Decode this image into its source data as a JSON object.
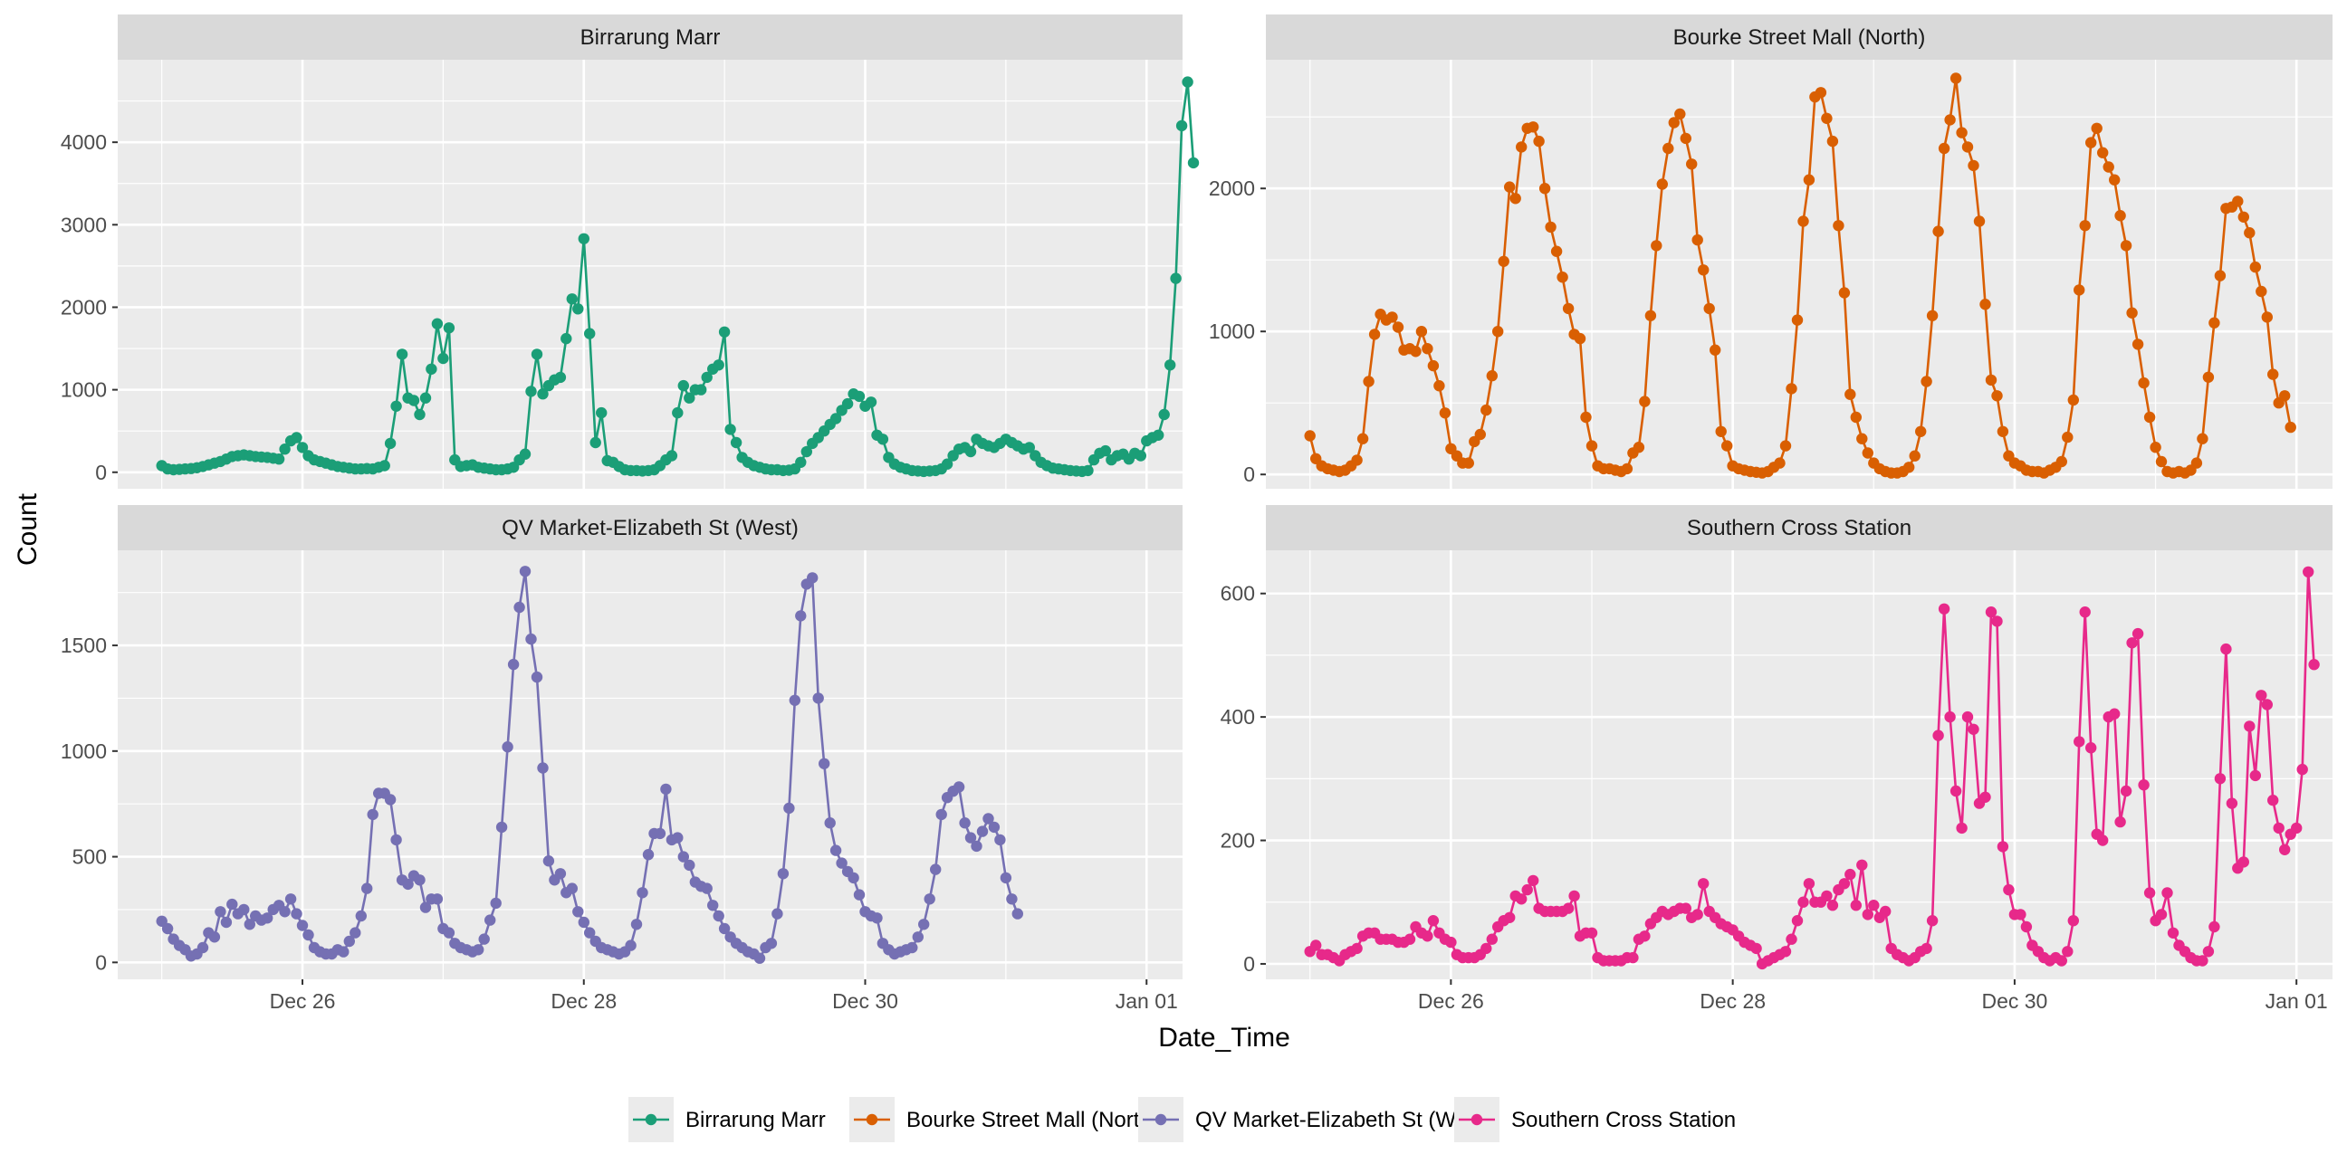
{
  "chart_data": {
    "type": "line",
    "xlabel": "Date_Time",
    "ylabel": "Count",
    "x_start": "2023-12-25T00:00",
    "x_end": "2023-12-31T23:00",
    "x_tick_labels": [
      "Dec 26",
      "Dec 28",
      "Dec 30",
      "Jan 01"
    ],
    "x_tick_dates": [
      "2023-12-26",
      "2023-12-28",
      "2023-12-30",
      "2024-01-01"
    ],
    "legend_position": "bottom",
    "grid": true,
    "colors": {
      "Birrarung Marr": "#1b9e77",
      "Bourke Street Mall (North)": "#d95f02",
      "QV Market-Elizabeth St (West)": "#7570b3",
      "Southern Cross Station": "#e7298a"
    },
    "legend": [
      "Birrarung Marr",
      "Bourke Street Mall (North)",
      "QV Market-Elizabeth St (West)",
      "Southern Cross Station"
    ],
    "panels": [
      {
        "name": "Birrarung Marr",
        "ylim": [
          -200,
          5000
        ],
        "yticks": [
          0,
          1000,
          2000,
          3000,
          4000
        ],
        "series": [
          {
            "x": "2023-12-25T00:00",
            "values": [
              80,
              40,
              30,
              35,
              40,
              45,
              55,
              70,
              90,
              110,
              130,
              160,
              190,
              200,
              210,
              200,
              190,
              185,
              180,
              170,
              160,
              280,
              380,
              420,
              300,
              200,
              150,
              130,
              110,
              90,
              70,
              60,
              50,
              40,
              40,
              45,
              40,
              60,
              80,
              350,
              800,
              1430,
              900,
              870,
              700,
              900,
              1250,
              1800,
              1380,
              1750,
              150,
              70,
              80,
              90,
              60,
              50,
              40,
              30,
              30,
              40,
              60,
              150,
              220,
              980,
              1430,
              950,
              1050,
              1120,
              1150,
              1620,
              2100,
              1980,
              2830,
              1680,
              360,
              720,
              140,
              120,
              70,
              30,
              20,
              20,
              15,
              20,
              30,
              80,
              150,
              200,
              720,
              1050,
              900,
              1000,
              1000,
              1150,
              1250,
              1300,
              1700,
              520,
              360,
              180,
              120,
              80,
              60,
              40,
              30,
              30,
              20,
              25,
              40,
              120,
              250,
              350,
              420,
              500,
              580,
              650,
              750,
              830,
              950,
              920,
              800,
              850,
              450,
              400,
              180,
              100,
              60,
              40,
              20,
              15,
              10,
              15,
              20,
              40,
              100,
              200,
              280,
              300,
              250,
              400,
              350,
              320,
              300,
              350,
              400,
              360,
              320,
              280,
              300,
              200,
              120,
              80,
              50,
              40,
              30,
              20,
              15,
              10,
              20,
              150,
              230,
              260,
              150,
              200,
              220,
              160,
              230,
              200,
              380,
              420,
              450,
              700,
              1300,
              2350,
              4200,
              4730,
              3750
            ]
          }
        ]
      },
      {
        "name": "Bourke Street Mall (North)",
        "ylim": [
          -100,
          2900
        ],
        "yticks": [
          0,
          1000,
          2000
        ],
        "series": [
          {
            "x": "2023-12-25T00:00",
            "values": [
              270,
              110,
              60,
              40,
              30,
              20,
              30,
              60,
              100,
              250,
              650,
              980,
              1120,
              1080,
              1100,
              1030,
              870,
              880,
              860,
              1000,
              880,
              760,
              620,
              430,
              180,
              130,
              80,
              80,
              230,
              280,
              450,
              690,
              1000,
              1490,
              2010,
              1930,
              2290,
              2420,
              2430,
              2330,
              2000,
              1730,
              1560,
              1380,
              1160,
              980,
              950,
              400,
              200,
              60,
              40,
              40,
              30,
              20,
              40,
              150,
              190,
              510,
              1110,
              1600,
              2030,
              2280,
              2460,
              2520,
              2350,
              2170,
              1640,
              1430,
              1160,
              870,
              300,
              200,
              60,
              40,
              30,
              20,
              15,
              10,
              20,
              50,
              80,
              200,
              600,
              1080,
              1770,
              2060,
              2640,
              2670,
              2490,
              2330,
              1740,
              1270,
              560,
              400,
              250,
              150,
              80,
              40,
              20,
              10,
              10,
              20,
              50,
              130,
              300,
              650,
              1110,
              1700,
              2280,
              2480,
              2770,
              2390,
              2290,
              2160,
              1770,
              1190,
              660,
              550,
              300,
              130,
              80,
              60,
              30,
              20,
              20,
              10,
              30,
              50,
              90,
              260,
              520,
              1290,
              1740,
              2320,
              2420,
              2250,
              2150,
              2060,
              1810,
              1600,
              1130,
              910,
              640,
              400,
              190,
              90,
              20,
              10,
              20,
              10,
              30,
              80,
              250,
              680,
              1060,
              1390,
              1860,
              1870,
              1910,
              1800,
              1690,
              1450,
              1280,
              1100,
              700,
              500,
              550,
              330
            ]
          }
        ]
      },
      {
        "name": "QV Market-Elizabeth St (West)",
        "ylim": [
          -80,
          1950
        ],
        "yticks": [
          0,
          500,
          1000,
          1500
        ],
        "series": [
          {
            "x": "2023-12-25T00:00",
            "values": [
              195,
              160,
              110,
              80,
              60,
              30,
              40,
              70,
              140,
              120,
              240,
              190,
              275,
              230,
              250,
              180,
              220,
              200,
              210,
              250,
              270,
              240,
              300,
              230,
              175,
              130,
              70,
              50,
              40,
              40,
              60,
              50,
              100,
              140,
              220,
              350,
              700,
              800,
              800,
              770,
              580,
              390,
              370,
              410,
              390,
              260,
              300,
              300,
              160,
              140,
              90,
              70,
              60,
              50,
              60,
              110,
              200,
              280,
              640,
              1020,
              1410,
              1680,
              1850,
              1530,
              1350,
              920,
              480,
              390,
              420,
              330,
              350,
              240,
              190,
              140,
              100,
              70,
              60,
              50,
              40,
              50,
              80,
              180,
              330,
              510,
              610,
              610,
              820,
              580,
              590,
              500,
              460,
              380,
              360,
              350,
              270,
              220,
              160,
              120,
              90,
              70,
              50,
              40,
              20,
              70,
              90,
              230,
              420,
              730,
              1240,
              1640,
              1790,
              1820,
              1250,
              940,
              660,
              530,
              470,
              430,
              400,
              320,
              240,
              220,
              210,
              90,
              60,
              40,
              50,
              60,
              70,
              120,
              180,
              300,
              440,
              700,
              780,
              810,
              830,
              660,
              590,
              550,
              620,
              680,
              640,
              580,
              400,
              300,
              230
            ]
          }
        ]
      },
      {
        "name": "Southern Cross Station",
        "ylim": [
          -25,
          670
        ],
        "yticks": [
          0,
          200,
          400,
          600
        ],
        "series": [
          {
            "x": "2023-12-25T00:00",
            "values": [
              20,
              30,
              15,
              15,
              10,
              5,
              15,
              20,
              25,
              45,
              50,
              50,
              40,
              40,
              40,
              35,
              35,
              40,
              60,
              50,
              45,
              70,
              50,
              40,
              35,
              15,
              10,
              10,
              10,
              15,
              25,
              40,
              60,
              70,
              75,
              110,
              105,
              120,
              135,
              90,
              85,
              85,
              85,
              85,
              90,
              110,
              45,
              50,
              50,
              10,
              5,
              5,
              5,
              5,
              10,
              10,
              40,
              45,
              65,
              75,
              85,
              80,
              85,
              90,
              90,
              75,
              80,
              130,
              85,
              75,
              65,
              60,
              55,
              45,
              35,
              30,
              25,
              0,
              5,
              10,
              15,
              20,
              40,
              70,
              100,
              130,
              100,
              100,
              110,
              95,
              120,
              130,
              145,
              95,
              160,
              80,
              95,
              75,
              85,
              25,
              15,
              10,
              5,
              10,
              20,
              25,
              70,
              370,
              575,
              400,
              280,
              220,
              400,
              380,
              260,
              270,
              570,
              555,
              190,
              120,
              80,
              80,
              60,
              30,
              20,
              10,
              5,
              10,
              5,
              20,
              70,
              360,
              570,
              350,
              210,
              200,
              400,
              405,
              230,
              280,
              520,
              535,
              290,
              115,
              70,
              80,
              115,
              50,
              30,
              20,
              10,
              5,
              5,
              20,
              60,
              300,
              510,
              260,
              155,
              165,
              385,
              305,
              435,
              420,
              265,
              220,
              185,
              210,
              220,
              315,
              635,
              485
            ]
          }
        ]
      }
    ]
  }
}
